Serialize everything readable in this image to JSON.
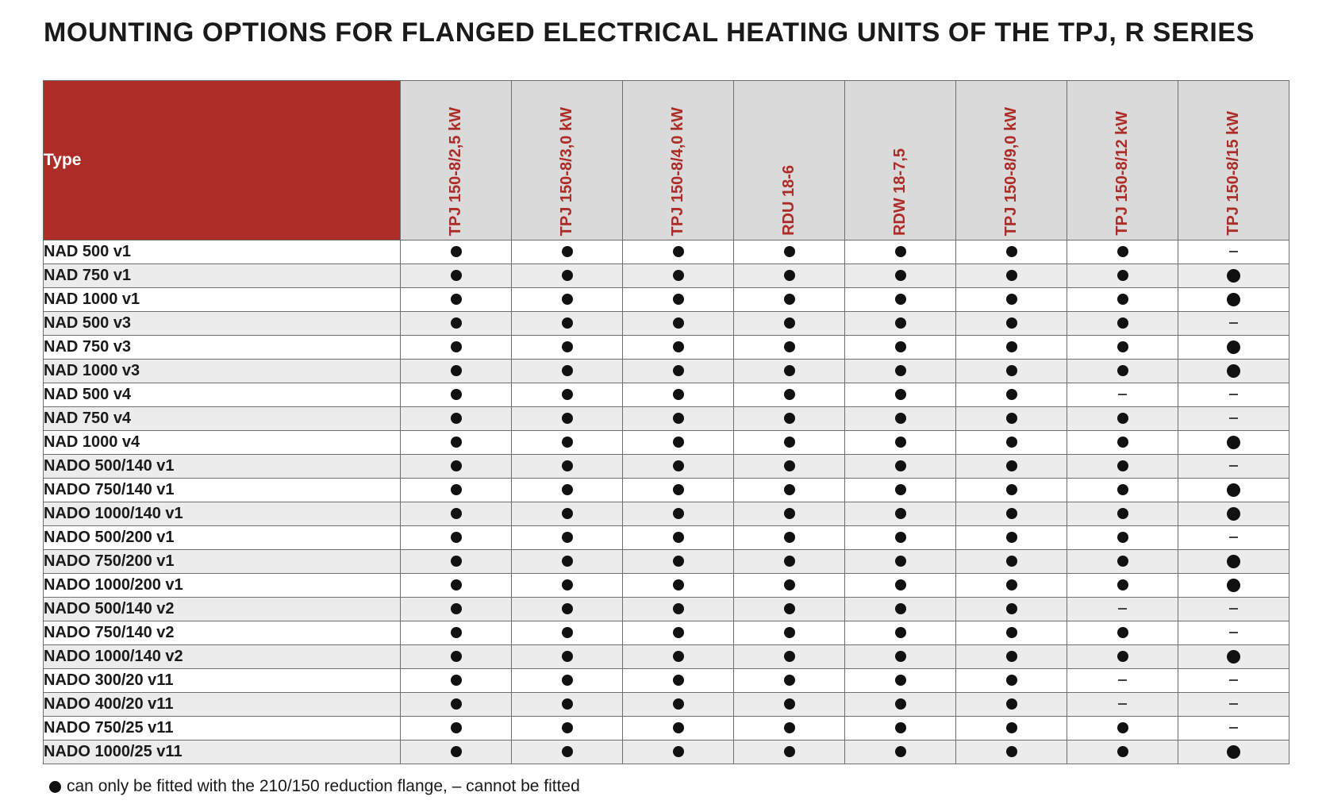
{
  "title": "MOUNTING OPTIONS FOR FLANGED ELECTRICAL HEATING UNITS OF THE TPJ, R SERIES",
  "table": {
    "type_header": "Type",
    "columns": [
      "TPJ 150-8/2,5 kW",
      "TPJ 150-8/3,0 kW",
      "TPJ 150-8/4,0 kW",
      "RDU 18-6",
      "RDW 18-7,5",
      "TPJ 150-8/9,0 kW",
      "TPJ 150-8/12 kW",
      "TPJ 150-8/15 kW"
    ],
    "rows": [
      {
        "type": "NAD 500 v1",
        "values": [
          "●",
          "●",
          "●",
          "●",
          "●",
          "●",
          "●",
          "–"
        ]
      },
      {
        "type": "NAD 750 v1",
        "values": [
          "●",
          "●",
          "●",
          "●",
          "●",
          "●",
          "●",
          "●"
        ]
      },
      {
        "type": "NAD 1000 v1",
        "values": [
          "●",
          "●",
          "●",
          "●",
          "●",
          "●",
          "●",
          "●"
        ]
      },
      {
        "type": "NAD 500 v3",
        "values": [
          "●",
          "●",
          "●",
          "●",
          "●",
          "●",
          "●",
          "–"
        ]
      },
      {
        "type": "NAD 750 v3",
        "values": [
          "●",
          "●",
          "●",
          "●",
          "●",
          "●",
          "●",
          "●"
        ]
      },
      {
        "type": "NAD 1000 v3",
        "values": [
          "●",
          "●",
          "●",
          "●",
          "●",
          "●",
          "●",
          "●"
        ]
      },
      {
        "type": "NAD 500 v4",
        "values": [
          "●",
          "●",
          "●",
          "●",
          "●",
          "●",
          "–",
          "–"
        ]
      },
      {
        "type": "NAD 750 v4",
        "values": [
          "●",
          "●",
          "●",
          "●",
          "●",
          "●",
          "●",
          "–"
        ]
      },
      {
        "type": "NAD 1000 v4",
        "values": [
          "●",
          "●",
          "●",
          "●",
          "●",
          "●",
          "●",
          "●"
        ]
      },
      {
        "type": "NADO 500/140 v1",
        "values": [
          "●",
          "●",
          "●",
          "●",
          "●",
          "●",
          "●",
          "–"
        ]
      },
      {
        "type": "NADO 750/140 v1",
        "values": [
          "●",
          "●",
          "●",
          "●",
          "●",
          "●",
          "●",
          "●"
        ]
      },
      {
        "type": "NADO 1000/140 v1",
        "values": [
          "●",
          "●",
          "●",
          "●",
          "●",
          "●",
          "●",
          "●"
        ]
      },
      {
        "type": "NADO 500/200 v1",
        "values": [
          "●",
          "●",
          "●",
          "●",
          "●",
          "●",
          "●",
          "–"
        ]
      },
      {
        "type": "NADO 750/200 v1",
        "values": [
          "●",
          "●",
          "●",
          "●",
          "●",
          "●",
          "●",
          "●"
        ]
      },
      {
        "type": "NADO 1000/200 v1",
        "values": [
          "●",
          "●",
          "●",
          "●",
          "●",
          "●",
          "●",
          "●"
        ]
      },
      {
        "type": "NADO 500/140 v2",
        "values": [
          "●",
          "●",
          "●",
          "●",
          "●",
          "●",
          "–",
          "–"
        ]
      },
      {
        "type": "NADO 750/140 v2",
        "values": [
          "●",
          "●",
          "●",
          "●",
          "●",
          "●",
          "●",
          "–"
        ]
      },
      {
        "type": "NADO 1000/140 v2",
        "values": [
          "●",
          "●",
          "●",
          "●",
          "●",
          "●",
          "●",
          "●"
        ]
      },
      {
        "type": "NADO 300/20 v11",
        "values": [
          "●",
          "●",
          "●",
          "●",
          "●",
          "●",
          "–",
          "–"
        ]
      },
      {
        "type": "NADO 400/20 v11",
        "values": [
          "●",
          "●",
          "●",
          "●",
          "●",
          "●",
          "–",
          "–"
        ]
      },
      {
        "type": "NADO 750/25 v11",
        "values": [
          "●",
          "●",
          "●",
          "●",
          "●",
          "●",
          "●",
          "–"
        ]
      },
      {
        "type": "NADO 1000/25 v11",
        "values": [
          "●",
          "●",
          "●",
          "●",
          "●",
          "●",
          "●",
          "●"
        ]
      }
    ]
  },
  "legend": {
    "symbol_dot": "●",
    "text": "can only be fitted with the 210/150 reduction flange, – cannot be fitted"
  },
  "colors": {
    "accent_red": "#ae2c28",
    "header_gray": "#dadada",
    "row_stripe": "#ececec"
  }
}
